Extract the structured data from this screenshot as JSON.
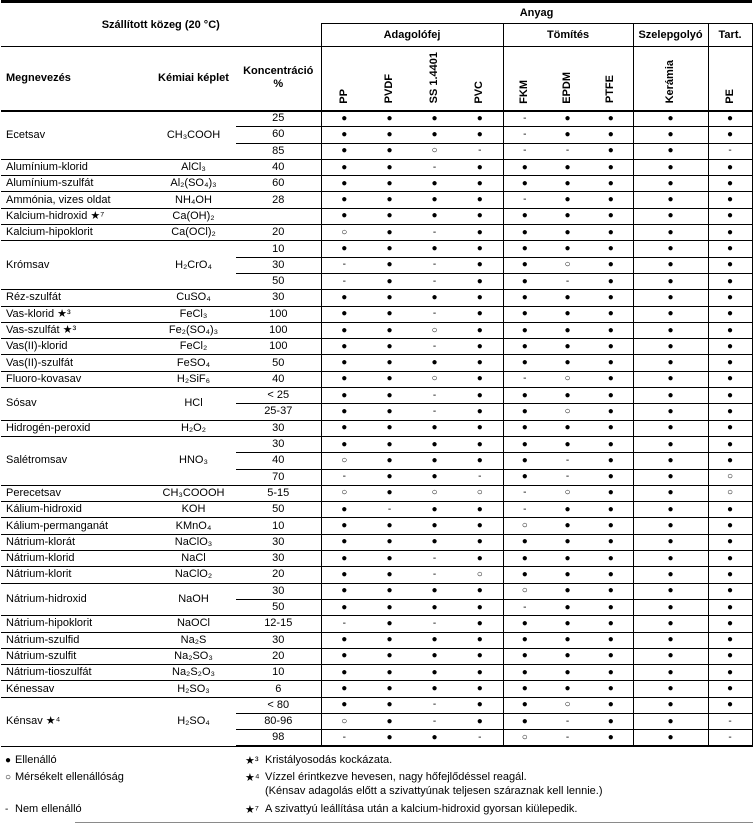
{
  "header": {
    "medium": "Szállított közeg (20 °C)",
    "material": "Anyag",
    "groups": [
      "Adagolófej",
      "Tömítés",
      "Szelepgolyó",
      "Tart."
    ],
    "name": "Megnevezés",
    "formula": "Kémiai képlet",
    "concentration": "Koncentráció",
    "percent": "%",
    "columns": [
      "PP",
      "PVDF",
      "SS 1.4401",
      "PVC",
      "FKM",
      "EPDM",
      "PTFE",
      "Kerámia",
      "PE"
    ]
  },
  "symbols": {
    "resistant": "●",
    "moderate": "○",
    "not_resistant": "-"
  },
  "rows": [
    {
      "name": "Ecetsav",
      "formula": "CH₃COOH",
      "rows": [
        [
          "25",
          "●",
          "●",
          "●",
          "●",
          "-",
          "●",
          "●",
          "●",
          "●"
        ],
        [
          "60",
          "●",
          "●",
          "●",
          "●",
          "-",
          "●",
          "●",
          "●",
          "●"
        ],
        [
          "85",
          "●",
          "●",
          "○",
          "-",
          "-",
          "-",
          "●",
          "●",
          "-"
        ]
      ]
    },
    {
      "name": "Alumínium-klorid",
      "formula": "AlCl₃",
      "rows": [
        [
          "40",
          "●",
          "●",
          "-",
          "●",
          "●",
          "●",
          "●",
          "●",
          "●"
        ]
      ]
    },
    {
      "name": "Alumínium-szulfát",
      "formula": "Al₂(SO₄)₃",
      "rows": [
        [
          "60",
          "●",
          "●",
          "●",
          "●",
          "●",
          "●",
          "●",
          "●",
          "●"
        ]
      ]
    },
    {
      "name": "Ammónia, vizes oldat",
      "formula": "NH₄OH",
      "rows": [
        [
          "28",
          "●",
          "●",
          "●",
          "●",
          "-",
          "●",
          "●",
          "●",
          "●"
        ]
      ]
    },
    {
      "name": "Kalcium-hidroxid ★⁷",
      "formula": "Ca(OH)₂",
      "rows": [
        [
          "",
          "●",
          "●",
          "●",
          "●",
          "●",
          "●",
          "●",
          "●",
          "●"
        ]
      ]
    },
    {
      "name": "Kalcium-hipoklorit",
      "formula": "Ca(OCl)₂",
      "rows": [
        [
          "20",
          "○",
          "●",
          "-",
          "●",
          "●",
          "●",
          "●",
          "●",
          "●"
        ]
      ]
    },
    {
      "name": "Krómsav",
      "formula": "H₂CrO₄",
      "rows": [
        [
          "10",
          "●",
          "●",
          "●",
          "●",
          "●",
          "●",
          "●",
          "●",
          "●"
        ],
        [
          "30",
          "-",
          "●",
          "-",
          "●",
          "●",
          "○",
          "●",
          "●",
          "●"
        ],
        [
          "50",
          "-",
          "●",
          "-",
          "●",
          "●",
          "-",
          "●",
          "●",
          "●"
        ]
      ]
    },
    {
      "name": "Réz-szulfát",
      "formula": "CuSO₄",
      "rows": [
        [
          "30",
          "●",
          "●",
          "●",
          "●",
          "●",
          "●",
          "●",
          "●",
          "●"
        ]
      ]
    },
    {
      "name": "Vas-klorid ★³",
      "formula": "FeCl₃",
      "rows": [
        [
          "100",
          "●",
          "●",
          "-",
          "●",
          "●",
          "●",
          "●",
          "●",
          "●"
        ]
      ]
    },
    {
      "name": "Vas-szulfát ★³",
      "formula": "Fe₂(SO₄)₃",
      "rows": [
        [
          "100",
          "●",
          "●",
          "○",
          "●",
          "●",
          "●",
          "●",
          "●",
          "●"
        ]
      ]
    },
    {
      "name": "Vas(II)-klorid",
      "formula": "FeCl₂",
      "rows": [
        [
          "100",
          "●",
          "●",
          "-",
          "●",
          "●",
          "●",
          "●",
          "●",
          "●"
        ]
      ]
    },
    {
      "name": "Vas(II)-szulfát",
      "formula": "FeSO₄",
      "rows": [
        [
          "50",
          "●",
          "●",
          "●",
          "●",
          "●",
          "●",
          "●",
          "●",
          "●"
        ]
      ]
    },
    {
      "name": "Fluoro-kovasav",
      "formula": "H₂SiF₆",
      "rows": [
        [
          "40",
          "●",
          "●",
          "○",
          "●",
          "-",
          "○",
          "●",
          "●",
          "●"
        ]
      ]
    },
    {
      "name": "Sósav",
      "formula": "HCl",
      "rows": [
        [
          "< 25",
          "●",
          "●",
          "-",
          "●",
          "●",
          "●",
          "●",
          "●",
          "●"
        ],
        [
          "25-37",
          "●",
          "●",
          "-",
          "●",
          "●",
          "○",
          "●",
          "●",
          "●"
        ]
      ]
    },
    {
      "name": "Hidrogén-peroxid",
      "formula": "H₂O₂",
      "rows": [
        [
          "30",
          "●",
          "●",
          "●",
          "●",
          "●",
          "●",
          "●",
          "●",
          "●"
        ]
      ]
    },
    {
      "name": "Salétromsav",
      "formula": "HNO₃",
      "rows": [
        [
          "30",
          "●",
          "●",
          "●",
          "●",
          "●",
          "●",
          "●",
          "●",
          "●"
        ],
        [
          "40",
          "○",
          "●",
          "●",
          "●",
          "●",
          "-",
          "●",
          "●",
          "●"
        ],
        [
          "70",
          "-",
          "●",
          "●",
          "-",
          "●",
          "-",
          "●",
          "●",
          "○"
        ]
      ]
    },
    {
      "name": "Perecetsav",
      "formula": "CH₃COOOH",
      "rows": [
        [
          "5-15",
          "○",
          "●",
          "○",
          "○",
          "-",
          "○",
          "●",
          "●",
          "○"
        ]
      ]
    },
    {
      "name": "Kálium-hidroxid",
      "formula": "KOH",
      "rows": [
        [
          "50",
          "●",
          "-",
          "●",
          "●",
          "-",
          "●",
          "●",
          "●",
          "●"
        ]
      ]
    },
    {
      "name": "Kálium-permanganát",
      "formula": "KMnO₄",
      "rows": [
        [
          "10",
          "●",
          "●",
          "●",
          "●",
          "○",
          "●",
          "●",
          "●",
          "●"
        ]
      ]
    },
    {
      "name": "Nátrium-klorát",
      "formula": "NaClO₃",
      "rows": [
        [
          "30",
          "●",
          "●",
          "●",
          "●",
          "●",
          "●",
          "●",
          "●",
          "●"
        ]
      ]
    },
    {
      "name": "Nátrium-klorid",
      "formula": "NaCl",
      "rows": [
        [
          "30",
          "●",
          "●",
          "-",
          "●",
          "●",
          "●",
          "●",
          "●",
          "●"
        ]
      ]
    },
    {
      "name": "Nátrium-klorit",
      "formula": "NaClO₂",
      "rows": [
        [
          "20",
          "●",
          "●",
          "-",
          "○",
          "●",
          "●",
          "●",
          "●",
          "●"
        ]
      ]
    },
    {
      "name": "Nátrium-hidroxid",
      "formula": "NaOH",
      "rows": [
        [
          "30",
          "●",
          "●",
          "●",
          "●",
          "○",
          "●",
          "●",
          "●",
          "●"
        ],
        [
          "50",
          "●",
          "●",
          "●",
          "●",
          "-",
          "●",
          "●",
          "●",
          "●"
        ]
      ]
    },
    {
      "name": "Nátrium-hipoklorit",
      "formula": "NaOCl",
      "rows": [
        [
          "12-15",
          "-",
          "●",
          "-",
          "●",
          "●",
          "●",
          "●",
          "●",
          "●"
        ]
      ]
    },
    {
      "name": "Nátrium-szulfid",
      "formula": "Na₂S",
      "rows": [
        [
          "30",
          "●",
          "●",
          "●",
          "●",
          "●",
          "●",
          "●",
          "●",
          "●"
        ]
      ]
    },
    {
      "name": "Nátrium-szulfit",
      "formula": "Na₂SO₃",
      "rows": [
        [
          "20",
          "●",
          "●",
          "●",
          "●",
          "●",
          "●",
          "●",
          "●",
          "●"
        ]
      ]
    },
    {
      "name": "Nátrium-tioszulfát",
      "formula": "Na₂S₂O₃",
      "rows": [
        [
          "10",
          "●",
          "●",
          "●",
          "●",
          "●",
          "●",
          "●",
          "●",
          "●"
        ]
      ]
    },
    {
      "name": "Kénessav",
      "formula": "H₂SO₃",
      "rows": [
        [
          "6",
          "●",
          "●",
          "●",
          "●",
          "●",
          "●",
          "●",
          "●",
          "●"
        ]
      ]
    },
    {
      "name": "Kénsav ★⁴",
      "formula": "H₂SO₄",
      "rows": [
        [
          "< 80",
          "●",
          "●",
          "-",
          "●",
          "●",
          "○",
          "●",
          "●",
          "●"
        ],
        [
          "80-96",
          "○",
          "●",
          "-",
          "●",
          "●",
          "-",
          "●",
          "●",
          "-"
        ],
        [
          "98",
          "-",
          "●",
          "●",
          "-",
          "○",
          "-",
          "●",
          "●",
          "-"
        ]
      ]
    }
  ],
  "legend": [
    {
      "symbol": "●",
      "label": "Ellenálló"
    },
    {
      "symbol": "○",
      "label": "Mérsékelt ellenállóság"
    },
    {
      "symbol": "-",
      "label": "Nem ellenálló"
    }
  ],
  "notes": [
    {
      "marker": "★³",
      "lines": [
        "Kristályosodás kockázata."
      ]
    },
    {
      "marker": "★⁴",
      "lines": [
        "Vízzel érintkezve hevesen, nagy hőfejlődéssel reagál.",
        "(Kénsav adagolás előtt a szivattyúnak teljesen száraznak kell lennie.)"
      ]
    },
    {
      "marker": "★⁷",
      "lines": [
        "A szivattyú leállítása után a kalcium-hidroxid gyorsan kiülepedik."
      ]
    }
  ]
}
